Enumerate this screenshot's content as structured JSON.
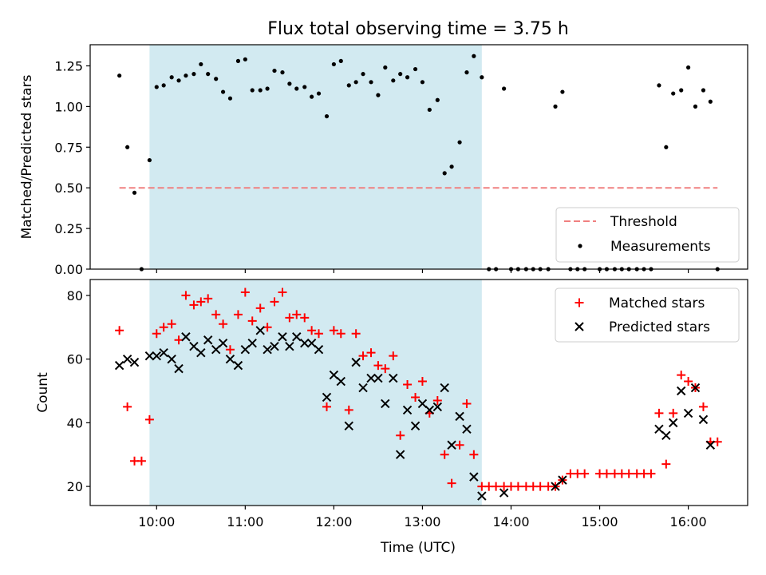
{
  "chart_data": {
    "title": "Flux total observing time = 3.75 h",
    "xlabel": "Time (UTC)",
    "x_ticks": [
      {
        "value": 10,
        "label": "10:00"
      },
      {
        "value": 11,
        "label": "11:00"
      },
      {
        "value": 12,
        "label": "12:00"
      },
      {
        "value": 13,
        "label": "13:00"
      },
      {
        "value": 14,
        "label": "14:00"
      },
      {
        "value": 15,
        "label": "15:00"
      },
      {
        "value": 16,
        "label": "16:00"
      }
    ],
    "xlim": [
      9.25,
      16.67
    ],
    "observing_span": [
      9.92,
      13.67
    ],
    "observing_span_color": "#add8e6",
    "panels": [
      {
        "type": "scatter",
        "ylabel": "Matched/Predicted stars",
        "ylim": [
          0,
          1.38
        ],
        "y_ticks": [
          "0.00",
          "0.25",
          "0.50",
          "0.75",
          "1.00",
          "1.25"
        ],
        "legend": "lower-right",
        "threshold": {
          "name": "Threshold",
          "value": 0.5,
          "x_range": [
            9.58,
            16.33
          ],
          "color": "#f08080"
        },
        "series": [
          {
            "name": "Measurements",
            "color": "#000000",
            "points": [
              [
                9.58,
                1.19
              ],
              [
                9.67,
                0.75
              ],
              [
                9.75,
                0.47
              ],
              [
                9.83,
                0.0
              ],
              [
                9.92,
                0.67
              ],
              [
                10.0,
                1.12
              ],
              [
                10.08,
                1.13
              ],
              [
                10.17,
                1.18
              ],
              [
                10.25,
                1.16
              ],
              [
                10.33,
                1.19
              ],
              [
                10.42,
                1.2
              ],
              [
                10.5,
                1.26
              ],
              [
                10.58,
                1.2
              ],
              [
                10.67,
                1.17
              ],
              [
                10.75,
                1.09
              ],
              [
                10.83,
                1.05
              ],
              [
                10.92,
                1.28
              ],
              [
                11.0,
                1.29
              ],
              [
                11.08,
                1.1
              ],
              [
                11.17,
                1.1
              ],
              [
                11.25,
                1.11
              ],
              [
                11.33,
                1.22
              ],
              [
                11.42,
                1.21
              ],
              [
                11.5,
                1.14
              ],
              [
                11.58,
                1.11
              ],
              [
                11.67,
                1.12
              ],
              [
                11.75,
                1.06
              ],
              [
                11.83,
                1.08
              ],
              [
                11.92,
                0.94
              ],
              [
                12.0,
                1.26
              ],
              [
                12.08,
                1.28
              ],
              [
                12.17,
                1.13
              ],
              [
                12.25,
                1.15
              ],
              [
                12.33,
                1.2
              ],
              [
                12.42,
                1.15
              ],
              [
                12.5,
                1.07
              ],
              [
                12.58,
                1.24
              ],
              [
                12.67,
                1.16
              ],
              [
                12.75,
                1.2
              ],
              [
                12.83,
                1.18
              ],
              [
                12.92,
                1.23
              ],
              [
                13.0,
                1.15
              ],
              [
                13.08,
                0.98
              ],
              [
                13.17,
                1.04
              ],
              [
                13.25,
                0.59
              ],
              [
                13.33,
                0.63
              ],
              [
                13.42,
                0.78
              ],
              [
                13.5,
                1.21
              ],
              [
                13.58,
                1.31
              ],
              [
                13.67,
                1.18
              ],
              [
                13.75,
                0.0
              ],
              [
                13.83,
                0.0
              ],
              [
                13.92,
                1.11
              ],
              [
                14.0,
                0.0
              ],
              [
                14.08,
                0.0
              ],
              [
                14.17,
                0.0
              ],
              [
                14.25,
                0.0
              ],
              [
                14.33,
                0.0
              ],
              [
                14.42,
                0.0
              ],
              [
                14.5,
                1.0
              ],
              [
                14.58,
                1.09
              ],
              [
                14.67,
                0.0
              ],
              [
                14.75,
                0.0
              ],
              [
                14.83,
                0.0
              ],
              [
                15.0,
                0.0
              ],
              [
                15.08,
                0.0
              ],
              [
                15.17,
                0.0
              ],
              [
                15.25,
                0.0
              ],
              [
                15.33,
                0.0
              ],
              [
                15.42,
                0.0
              ],
              [
                15.5,
                0.0
              ],
              [
                15.58,
                0.0
              ],
              [
                15.67,
                1.13
              ],
              [
                15.75,
                0.75
              ],
              [
                15.83,
                1.08
              ],
              [
                15.92,
                1.1
              ],
              [
                16.0,
                1.24
              ],
              [
                16.08,
                1.0
              ],
              [
                16.17,
                1.1
              ],
              [
                16.25,
                1.03
              ],
              [
                16.33,
                0.0
              ]
            ]
          }
        ]
      },
      {
        "type": "scatter",
        "ylabel": "Count",
        "ylim": [
          14,
          85
        ],
        "y_ticks": [
          "20",
          "40",
          "60",
          "80"
        ],
        "legend": "top-right",
        "series": [
          {
            "name": "Matched stars",
            "marker": "plus",
            "color": "#ff0000",
            "points": [
              [
                9.58,
                69
              ],
              [
                9.67,
                45
              ],
              [
                9.75,
                28
              ],
              [
                9.83,
                28
              ],
              [
                9.92,
                41
              ],
              [
                10.0,
                68
              ],
              [
                10.08,
                70
              ],
              [
                10.17,
                71
              ],
              [
                10.25,
                66
              ],
              [
                10.33,
                80
              ],
              [
                10.42,
                77
              ],
              [
                10.5,
                78
              ],
              [
                10.58,
                79
              ],
              [
                10.67,
                74
              ],
              [
                10.75,
                71
              ],
              [
                10.83,
                63
              ],
              [
                10.92,
                74
              ],
              [
                11.0,
                81
              ],
              [
                11.08,
                72
              ],
              [
                11.17,
                76
              ],
              [
                11.25,
                70
              ],
              [
                11.33,
                78
              ],
              [
                11.42,
                81
              ],
              [
                11.5,
                73
              ],
              [
                11.58,
                74
              ],
              [
                11.67,
                73
              ],
              [
                11.75,
                69
              ],
              [
                11.83,
                68
              ],
              [
                11.92,
                45
              ],
              [
                12.0,
                69
              ],
              [
                12.08,
                68
              ],
              [
                12.17,
                44
              ],
              [
                12.25,
                68
              ],
              [
                12.33,
                61
              ],
              [
                12.42,
                62
              ],
              [
                12.5,
                58
              ],
              [
                12.58,
                57
              ],
              [
                12.67,
                61
              ],
              [
                12.75,
                36
              ],
              [
                12.83,
                52
              ],
              [
                12.92,
                48
              ],
              [
                13.0,
                53
              ],
              [
                13.08,
                43
              ],
              [
                13.17,
                47
              ],
              [
                13.25,
                30
              ],
              [
                13.33,
                21
              ],
              [
                13.42,
                33
              ],
              [
                13.5,
                46
              ],
              [
                13.58,
                30
              ],
              [
                13.67,
                20
              ],
              [
                13.75,
                20
              ],
              [
                13.83,
                20
              ],
              [
                13.92,
                20
              ],
              [
                14.0,
                20
              ],
              [
                14.08,
                20
              ],
              [
                14.17,
                20
              ],
              [
                14.25,
                20
              ],
              [
                14.33,
                20
              ],
              [
                14.42,
                20
              ],
              [
                14.5,
                20
              ],
              [
                14.58,
                22
              ],
              [
                14.67,
                24
              ],
              [
                14.75,
                24
              ],
              [
                14.83,
                24
              ],
              [
                15.0,
                24
              ],
              [
                15.08,
                24
              ],
              [
                15.17,
                24
              ],
              [
                15.25,
                24
              ],
              [
                15.33,
                24
              ],
              [
                15.42,
                24
              ],
              [
                15.5,
                24
              ],
              [
                15.58,
                24
              ],
              [
                15.67,
                43
              ],
              [
                15.75,
                27
              ],
              [
                15.83,
                43
              ],
              [
                15.92,
                55
              ],
              [
                16.0,
                53
              ],
              [
                16.08,
                51
              ],
              [
                16.17,
                45
              ],
              [
                16.25,
                34
              ],
              [
                16.33,
                34
              ]
            ]
          },
          {
            "name": "Predicted stars",
            "marker": "x",
            "color": "#000000",
            "points": [
              [
                9.58,
                58
              ],
              [
                9.67,
                60
              ],
              [
                9.75,
                59
              ],
              [
                9.92,
                61
              ],
              [
                10.0,
                61
              ],
              [
                10.08,
                62
              ],
              [
                10.17,
                60
              ],
              [
                10.25,
                57
              ],
              [
                10.33,
                67
              ],
              [
                10.42,
                64
              ],
              [
                10.5,
                62
              ],
              [
                10.58,
                66
              ],
              [
                10.67,
                63
              ],
              [
                10.75,
                65
              ],
              [
                10.83,
                60
              ],
              [
                10.92,
                58
              ],
              [
                11.0,
                63
              ],
              [
                11.08,
                65
              ],
              [
                11.17,
                69
              ],
              [
                11.25,
                63
              ],
              [
                11.33,
                64
              ],
              [
                11.42,
                67
              ],
              [
                11.5,
                64
              ],
              [
                11.58,
                67
              ],
              [
                11.67,
                65
              ],
              [
                11.75,
                65
              ],
              [
                11.83,
                63
              ],
              [
                11.92,
                48
              ],
              [
                12.0,
                55
              ],
              [
                12.08,
                53
              ],
              [
                12.17,
                39
              ],
              [
                12.25,
                59
              ],
              [
                12.33,
                51
              ],
              [
                12.42,
                54
              ],
              [
                12.5,
                54
              ],
              [
                12.58,
                46
              ],
              [
                12.67,
                54
              ],
              [
                12.75,
                30
              ],
              [
                12.83,
                44
              ],
              [
                12.92,
                39
              ],
              [
                13.0,
                46
              ],
              [
                13.08,
                44
              ],
              [
                13.17,
                45
              ],
              [
                13.25,
                51
              ],
              [
                13.33,
                33
              ],
              [
                13.42,
                42
              ],
              [
                13.5,
                38
              ],
              [
                13.58,
                23
              ],
              [
                13.67,
                17
              ],
              [
                13.92,
                18
              ],
              [
                14.5,
                20
              ],
              [
                14.58,
                22
              ],
              [
                15.67,
                38
              ],
              [
                15.75,
                36
              ],
              [
                15.83,
                40
              ],
              [
                15.92,
                50
              ],
              [
                16.0,
                43
              ],
              [
                16.08,
                51
              ],
              [
                16.17,
                41
              ],
              [
                16.25,
                33
              ]
            ]
          }
        ]
      }
    ]
  }
}
